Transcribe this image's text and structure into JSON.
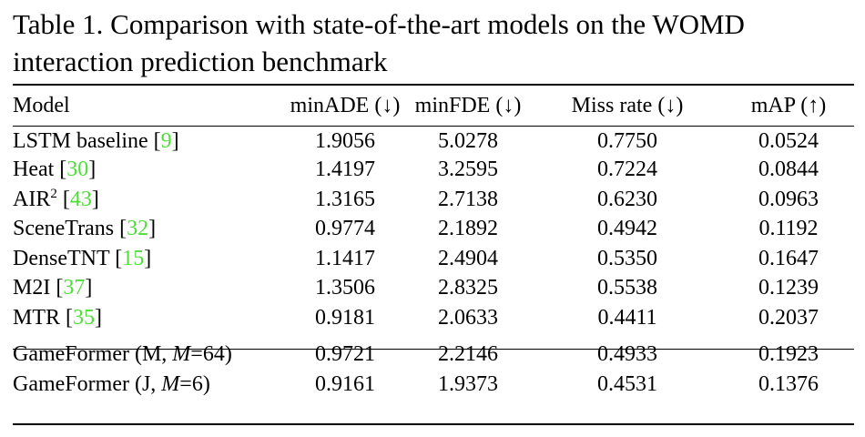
{
  "caption": {
    "line1": "Table 1. Comparison with state-of-the-art models on the WOMD",
    "line2": "interaction prediction benchmark"
  },
  "headers": {
    "model": "Model",
    "min_ade": "minADE (↓)",
    "min_fde": "minFDE (↓)",
    "miss_rate": "Miss rate (↓)",
    "map": "mAP (↑)"
  },
  "rows": [
    {
      "name": "LSTM baseline [",
      "cite": "9",
      "close": "]",
      "min_ade": "1.9056",
      "min_fde": "5.0278",
      "miss_rate": "0.7750",
      "map": "0.0524"
    },
    {
      "name": "Heat [",
      "cite": "30",
      "close": "]",
      "min_ade": "1.4197",
      "min_fde": "3.2595",
      "miss_rate": "0.7224",
      "map": "0.0844"
    },
    {
      "name": "AIR",
      "sup": "2",
      "open": " [",
      "cite": "43",
      "close": "]",
      "min_ade": "1.3165",
      "min_fde": "2.7138",
      "miss_rate": "0.6230",
      "map": "0.0963"
    },
    {
      "name": "SceneTrans [",
      "cite": "32",
      "close": "]",
      "min_ade": "0.9774",
      "min_fde": "2.1892",
      "miss_rate": "0.4942",
      "map": "0.1192"
    },
    {
      "name": "DenseTNT [",
      "cite": "15",
      "close": "]",
      "min_ade": "1.1417",
      "min_fde": "2.4904",
      "miss_rate": "0.5350",
      "map": "0.1647"
    },
    {
      "name": "M2I [",
      "cite": "37",
      "close": "]",
      "min_ade": "1.3506",
      "min_fde": "2.8325",
      "miss_rate": "0.5538",
      "map": "0.1239"
    },
    {
      "name": "MTR [",
      "cite": "35",
      "close": "]",
      "min_ade": "0.9181",
      "min_fde": "2.0633",
      "miss_rate": "0.4411",
      "map": "0.2037"
    },
    {
      "pre": "GameFormer (M, ",
      "var": "M",
      "post": "=64)",
      "min_ade": "0.9721",
      "min_fde": "2.2146",
      "miss_rate": "0.4933",
      "map": "0.1923"
    },
    {
      "pre": "GameFormer (J, ",
      "var": "M",
      "post": "=6)",
      "min_ade": "0.9161",
      "min_fde": "1.9373",
      "miss_rate": "0.4531",
      "map": "0.1376"
    }
  ],
  "colors": {
    "citation": "#4ddf38",
    "text": "#000000"
  }
}
